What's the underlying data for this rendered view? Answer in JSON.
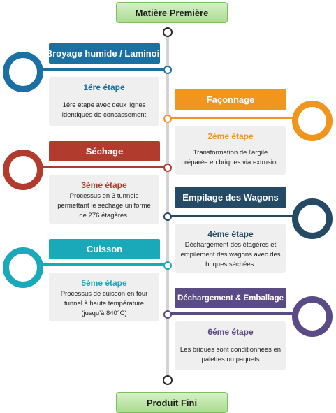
{
  "start": {
    "label": "Matière Première"
  },
  "end": {
    "label": "Produit Fini"
  },
  "stages": [
    {
      "title": "Broyage humide / Laminoir",
      "step": "1ére étape",
      "description": "1ére étape avec deux lignes identiques de concassement",
      "color": "#1a6fa3"
    },
    {
      "title": "Façonnage",
      "step": "2éme étape",
      "description": "Transformation de l'argile préparée en briques via extrusion",
      "color": "#f0961e"
    },
    {
      "title": "Séchage",
      "step": "3éme étape",
      "description": "Processus en 3 tunnels permettant le séchage uniforme de 276 étagères.",
      "color": "#b13c2e"
    },
    {
      "title": "Empilage des Wagons",
      "step": "4éme étape",
      "description": "Déchargement des étagères et empilement des wagons avec des briques séchées.",
      "color": "#254a66"
    },
    {
      "title": "Cuisson",
      "step": "5éme étape",
      "description": "Processus de cuisson en four tunnel à haute température (jusqu'à 840°C)",
      "color": "#1aa9b8"
    },
    {
      "title": "Déchargement & Emballage",
      "step": "6éme étape",
      "description": "Les briques sont conditionnées en palettes ou paquets",
      "color": "#5a4a85"
    }
  ]
}
